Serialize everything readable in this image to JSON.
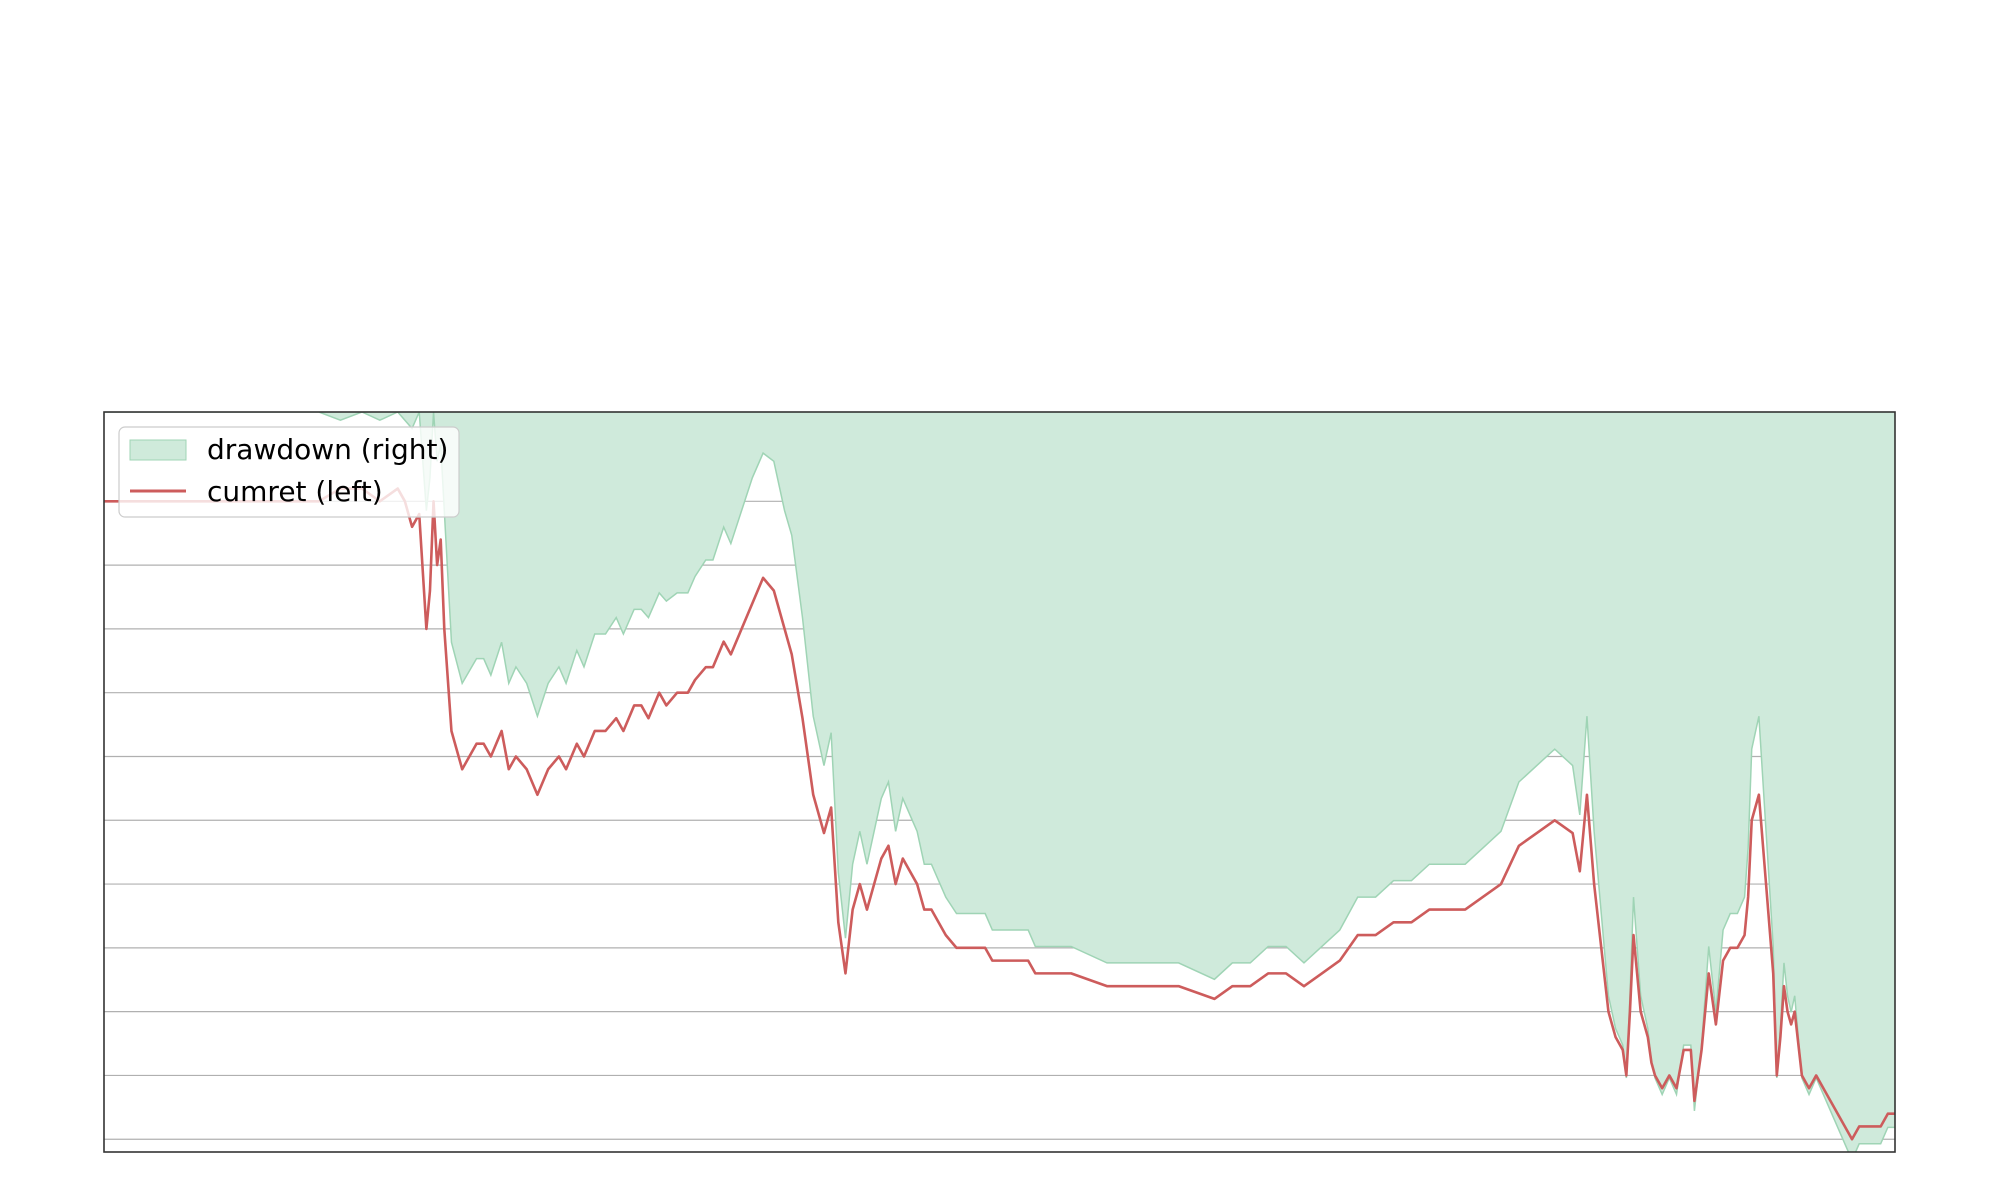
{
  "chart_data": {
    "type": "line",
    "title": "",
    "xlabel": "",
    "ylabel_left": "",
    "ylabel_right": "",
    "grid": "horizontal",
    "legend_placement": "upper-left",
    "x_range": [
      0,
      500
    ],
    "left_axis": {
      "ylim": [
        -0.46,
        0.12
      ]
    },
    "right_axis": {
      "ylim": [
        -0.9,
        0.0
      ]
    },
    "legend": [
      {
        "name": "drawdown (right)",
        "kind": "area"
      },
      {
        "name": "cumret (left)",
        "kind": "line"
      }
    ],
    "colors": {
      "drawdown_fill": "#cfeadb",
      "drawdown_edge": "#9fd4b5",
      "cumret_line": "#cd5c5c",
      "grid": "#b0b0b0",
      "frame": "#333333"
    },
    "series": [
      {
        "name": "cumret (left)",
        "axis": "left",
        "x": [
          0,
          60,
          66,
          72,
          77,
          82,
          84,
          86,
          88,
          90,
          91,
          92,
          93,
          94,
          95,
          97,
          100,
          104,
          106,
          108,
          111,
          113,
          115,
          118,
          121,
          124,
          127,
          129,
          132,
          134,
          137,
          140,
          143,
          145,
          148,
          150,
          152,
          155,
          157,
          160,
          163,
          165,
          168,
          170,
          173,
          175,
          178,
          181,
          184,
          187,
          190,
          192,
          195,
          198,
          201,
          203,
          205,
          207,
          209,
          211,
          213,
          215,
          217,
          219,
          221,
          223,
          225,
          227,
          229,
          231,
          233,
          235,
          238,
          240,
          242,
          244,
          246,
          248,
          250,
          252,
          254,
          256,
          258,
          260,
          262,
          264,
          266,
          270,
          280,
          290,
          295,
          300,
          310,
          315,
          320,
          325,
          330,
          335,
          340,
          345,
          350,
          355,
          360,
          365,
          370,
          375,
          380,
          385,
          390,
          395,
          400,
          405,
          410,
          412,
          414,
          416,
          418,
          420,
          422,
          424,
          425,
          426,
          427,
          428,
          429,
          430,
          431,
          432,
          433,
          435,
          437,
          439,
          441,
          443,
          444,
          446,
          448,
          450,
          452,
          454,
          456,
          458,
          459,
          460,
          462,
          464,
          466,
          467,
          468,
          469,
          470,
          471,
          472,
          474,
          476,
          478,
          480,
          482,
          484,
          486,
          488,
          490,
          492,
          494,
          496,
          498,
          500
        ],
        "y": [
          0.05,
          0.05,
          0.06,
          0.06,
          0.05,
          0.06,
          0.05,
          0.03,
          0.04,
          -0.05,
          -0.02,
          0.05,
          0.0,
          0.02,
          -0.05,
          -0.13,
          -0.16,
          -0.14,
          -0.14,
          -0.15,
          -0.13,
          -0.16,
          -0.15,
          -0.16,
          -0.18,
          -0.16,
          -0.15,
          -0.16,
          -0.14,
          -0.15,
          -0.13,
          -0.13,
          -0.12,
          -0.13,
          -0.11,
          -0.11,
          -0.12,
          -0.1,
          -0.11,
          -0.1,
          -0.1,
          -0.09,
          -0.08,
          -0.08,
          -0.06,
          -0.07,
          -0.05,
          -0.03,
          -0.01,
          -0.02,
          -0.05,
          -0.07,
          -0.12,
          -0.18,
          -0.21,
          -0.19,
          -0.28,
          -0.32,
          -0.27,
          -0.25,
          -0.27,
          -0.25,
          -0.23,
          -0.22,
          -0.25,
          -0.23,
          -0.24,
          -0.25,
          -0.27,
          -0.27,
          -0.28,
          -0.29,
          -0.3,
          -0.3,
          -0.3,
          -0.3,
          -0.3,
          -0.31,
          -0.31,
          -0.31,
          -0.31,
          -0.31,
          -0.31,
          -0.32,
          -0.32,
          -0.32,
          -0.32,
          -0.32,
          -0.33,
          -0.33,
          -0.33,
          -0.33,
          -0.34,
          -0.33,
          -0.33,
          -0.32,
          -0.32,
          -0.33,
          -0.32,
          -0.31,
          -0.29,
          -0.29,
          -0.28,
          -0.28,
          -0.27,
          -0.27,
          -0.27,
          -0.26,
          -0.25,
          -0.22,
          -0.21,
          -0.2,
          -0.21,
          -0.24,
          -0.18,
          -0.25,
          -0.3,
          -0.35,
          -0.37,
          -0.38,
          -0.4,
          -0.35,
          -0.29,
          -0.32,
          -0.35,
          -0.36,
          -0.37,
          -0.39,
          -0.4,
          -0.41,
          -0.4,
          -0.41,
          -0.38,
          -0.38,
          -0.42,
          -0.38,
          -0.32,
          -0.36,
          -0.31,
          -0.3,
          -0.3,
          -0.29,
          -0.26,
          -0.2,
          -0.18,
          -0.25,
          -0.32,
          -0.4,
          -0.37,
          -0.33,
          -0.35,
          -0.36,
          -0.35,
          -0.4,
          -0.41,
          -0.4,
          -0.41,
          -0.42,
          -0.43,
          -0.44,
          -0.45,
          -0.44,
          -0.44,
          -0.44,
          -0.44,
          -0.43,
          -0.43
        ]
      },
      {
        "name": "drawdown (right)",
        "axis": "right",
        "x": [
          0,
          60,
          66,
          72,
          77,
          82,
          84,
          86,
          88,
          90,
          91,
          92,
          93,
          94,
          95,
          97,
          100,
          104,
          106,
          108,
          111,
          113,
          115,
          118,
          121,
          124,
          127,
          129,
          132,
          134,
          137,
          140,
          143,
          145,
          148,
          150,
          152,
          155,
          157,
          160,
          163,
          165,
          168,
          170,
          173,
          175,
          178,
          181,
          184,
          187,
          190,
          192,
          195,
          198,
          201,
          203,
          205,
          207,
          209,
          211,
          213,
          215,
          217,
          219,
          221,
          223,
          225,
          227,
          229,
          231,
          233,
          235,
          238,
          240,
          242,
          244,
          246,
          248,
          250,
          252,
          254,
          256,
          258,
          260,
          262,
          264,
          266,
          270,
          280,
          290,
          295,
          300,
          310,
          315,
          320,
          325,
          330,
          335,
          340,
          345,
          350,
          355,
          360,
          365,
          370,
          375,
          380,
          385,
          390,
          395,
          400,
          405,
          410,
          412,
          414,
          416,
          418,
          420,
          422,
          424,
          425,
          426,
          427,
          428,
          429,
          430,
          431,
          432,
          433,
          435,
          437,
          439,
          441,
          443,
          444,
          446,
          448,
          450,
          452,
          454,
          456,
          458,
          459,
          460,
          462,
          464,
          466,
          467,
          468,
          469,
          470,
          471,
          472,
          474,
          476,
          478,
          480,
          482,
          484,
          486,
          488,
          490,
          492,
          494,
          496,
          498,
          500
        ],
        "y": [
          0.0,
          0.0,
          -0.01,
          0.0,
          -0.01,
          0.0,
          -0.01,
          -0.02,
          0.0,
          -0.12,
          -0.08,
          0.0,
          -0.06,
          -0.04,
          -0.12,
          -0.28,
          -0.33,
          -0.3,
          -0.3,
          -0.32,
          -0.28,
          -0.33,
          -0.31,
          -0.33,
          -0.37,
          -0.33,
          -0.31,
          -0.33,
          -0.29,
          -0.31,
          -0.27,
          -0.27,
          -0.25,
          -0.27,
          -0.24,
          -0.24,
          -0.25,
          -0.22,
          -0.23,
          -0.22,
          -0.22,
          -0.2,
          -0.18,
          -0.18,
          -0.14,
          -0.16,
          -0.12,
          -0.08,
          -0.05,
          -0.06,
          -0.12,
          -0.15,
          -0.25,
          -0.37,
          -0.43,
          -0.39,
          -0.56,
          -0.64,
          -0.55,
          -0.51,
          -0.55,
          -0.51,
          -0.47,
          -0.45,
          -0.51,
          -0.47,
          -0.49,
          -0.51,
          -0.55,
          -0.55,
          -0.57,
          -0.59,
          -0.61,
          -0.61,
          -0.61,
          -0.61,
          -0.61,
          -0.63,
          -0.63,
          -0.63,
          -0.63,
          -0.63,
          -0.63,
          -0.65,
          -0.65,
          -0.65,
          -0.65,
          -0.65,
          -0.67,
          -0.67,
          -0.67,
          -0.67,
          -0.69,
          -0.67,
          -0.67,
          -0.65,
          -0.65,
          -0.67,
          -0.65,
          -0.63,
          -0.59,
          -0.59,
          -0.57,
          -0.57,
          -0.55,
          -0.55,
          -0.55,
          -0.53,
          -0.51,
          -0.45,
          -0.43,
          -0.41,
          -0.43,
          -0.49,
          -0.37,
          -0.51,
          -0.61,
          -0.71,
          -0.75,
          -0.77,
          -0.81,
          -0.71,
          -0.59,
          -0.65,
          -0.71,
          -0.73,
          -0.75,
          -0.79,
          -0.81,
          -0.83,
          -0.81,
          -0.83,
          -0.77,
          -0.77,
          -0.85,
          -0.77,
          -0.65,
          -0.73,
          -0.63,
          -0.61,
          -0.61,
          -0.59,
          -0.53,
          -0.41,
          -0.37,
          -0.51,
          -0.65,
          -0.81,
          -0.75,
          -0.67,
          -0.71,
          -0.73,
          -0.71,
          -0.81,
          -0.83,
          -0.81,
          -0.83,
          -0.85,
          -0.87,
          -0.89,
          -0.91,
          -0.89,
          -0.89,
          -0.89,
          -0.89,
          -0.87,
          -0.87
        ]
      }
    ]
  }
}
